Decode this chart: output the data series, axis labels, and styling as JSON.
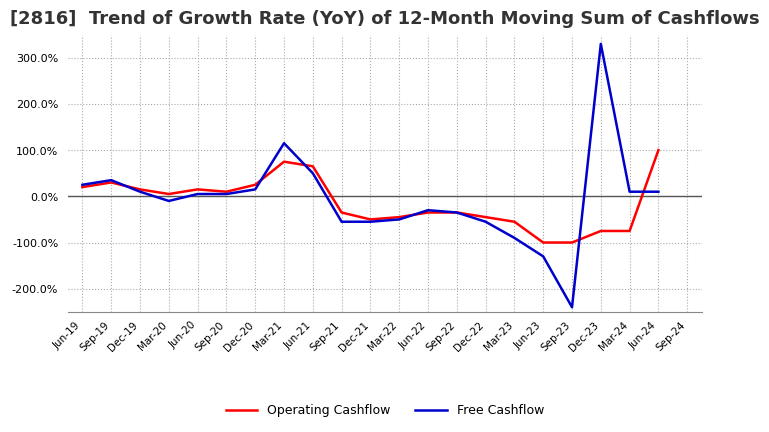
{
  "title": "[2816]  Trend of Growth Rate (YoY) of 12-Month Moving Sum of Cashflows",
  "x_labels": [
    "Jun-19",
    "Sep-19",
    "Dec-19",
    "Mar-20",
    "Jun-20",
    "Sep-20",
    "Dec-20",
    "Mar-21",
    "Jun-21",
    "Sep-21",
    "Dec-21",
    "Mar-22",
    "Jun-22",
    "Sep-22",
    "Dec-22",
    "Mar-23",
    "Jun-23",
    "Sep-23",
    "Dec-23",
    "Mar-24",
    "Jun-24",
    "Sep-24"
  ],
  "operating_cashflow": [
    20,
    30,
    15,
    5,
    15,
    10,
    25,
    75,
    65,
    -35,
    -50,
    -45,
    -35,
    -35,
    -45,
    -55,
    -100,
    -100,
    -75,
    -75,
    100,
    null
  ],
  "free_cashflow": [
    25,
    35,
    10,
    -10,
    5,
    5,
    15,
    115,
    50,
    -55,
    -55,
    -50,
    -30,
    -35,
    -55,
    -90,
    -130,
    -240,
    330,
    10,
    10,
    null
  ],
  "ylim": [
    -250,
    350
  ],
  "yticks": [
    -200,
    -100,
    0,
    100,
    200,
    300
  ],
  "operating_color": "#ff0000",
  "free_color": "#0000cd",
  "grid_color": "#aaaaaa",
  "zero_line_color": "#555555",
  "background_color": "#ffffff",
  "title_fontsize": 13,
  "legend_labels": [
    "Operating Cashflow",
    "Free Cashflow"
  ]
}
